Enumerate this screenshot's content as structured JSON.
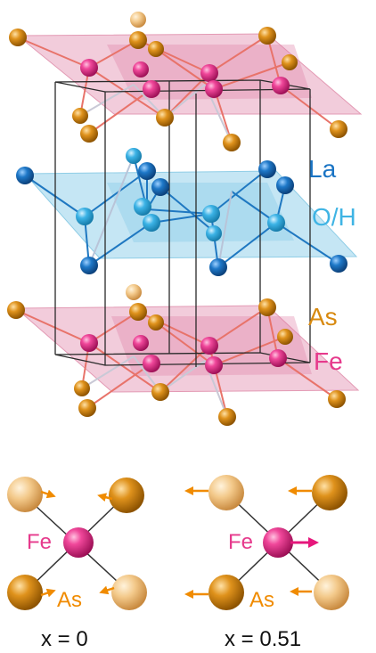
{
  "structure": {
    "legend": {
      "la": "La",
      "oh": "O/H",
      "as": "As",
      "fe": "Fe"
    }
  },
  "panels": [
    {
      "fe_label": "Fe",
      "as_label": "As",
      "caption": "x = 0"
    },
    {
      "fe_label": "Fe",
      "as_label": "As",
      "caption": "x = 0.51"
    }
  ],
  "colors": {
    "la": "#1a74c4",
    "oh": "#3fb4e4",
    "as": "#d88a10",
    "fe": "#e63a8c",
    "fe_plane": "#e8a3bd",
    "oh_plane": "#9fd6ec",
    "arrow_orange": "#f08b00",
    "arrow_magenta": "#e6177c"
  }
}
